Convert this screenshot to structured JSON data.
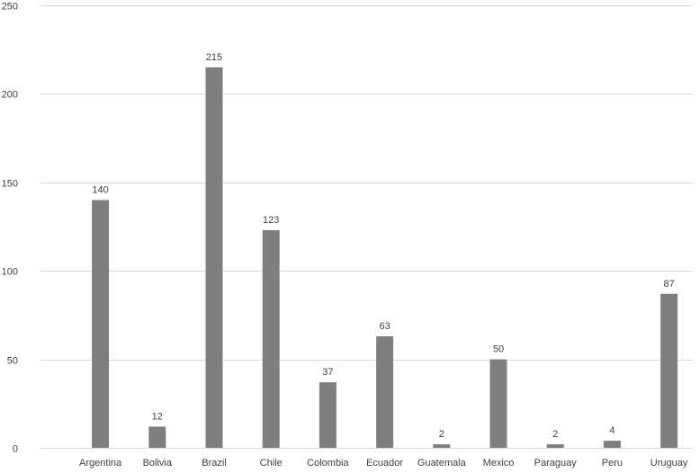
{
  "chart_data": {
    "type": "bar",
    "categories": [
      "Argentina",
      "Bolivia",
      "Brazil",
      "Chile",
      "Colombia",
      "Ecuador",
      "Guatemala",
      "Mexico",
      "Paraguay",
      "Peru",
      "Uruguay"
    ],
    "values": [
      140,
      12,
      215,
      123,
      37,
      63,
      2,
      50,
      2,
      4,
      87
    ],
    "title": "",
    "xlabel": "",
    "ylabel": "",
    "ylim": [
      0,
      250
    ],
    "yticks": [
      0,
      50,
      100,
      150,
      200,
      250
    ],
    "grid": true,
    "legend": "none",
    "bar_color": "#7f7f7f",
    "grid_color": "#d9d9d9",
    "text_color": "#404040"
  }
}
